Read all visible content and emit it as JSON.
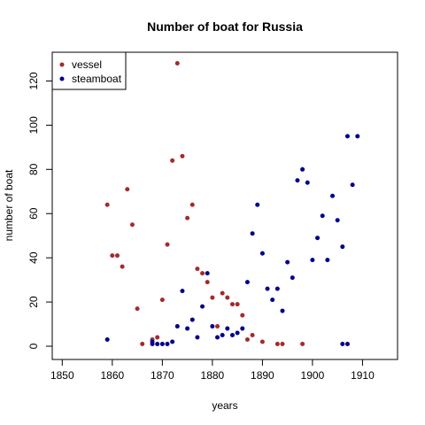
{
  "chart_data": {
    "type": "scatter",
    "title": "Number of boat for Russia",
    "xlabel": "years",
    "ylabel": "number of boat",
    "xlim": [
      1848,
      1917
    ],
    "ylim": [
      -6,
      133
    ],
    "xticks": [
      1850,
      1860,
      1870,
      1880,
      1890,
      1900,
      1910
    ],
    "yticks": [
      0,
      20,
      40,
      60,
      80,
      100,
      120
    ],
    "grid": false,
    "legend_position": "top-left",
    "series": [
      {
        "name": "vessel",
        "color": "#a52a2a",
        "points": [
          [
            1859,
            64
          ],
          [
            1860,
            41
          ],
          [
            1861,
            41
          ],
          [
            1862,
            36
          ],
          [
            1863,
            71
          ],
          [
            1864,
            55
          ],
          [
            1865,
            17
          ],
          [
            1866,
            1
          ],
          [
            1868,
            3
          ],
          [
            1869,
            4
          ],
          [
            1870,
            21
          ],
          [
            1871,
            46
          ],
          [
            1872,
            84
          ],
          [
            1873,
            128
          ],
          [
            1874,
            86
          ],
          [
            1875,
            58
          ],
          [
            1876,
            64
          ],
          [
            1877,
            35
          ],
          [
            1878,
            33
          ],
          [
            1879,
            29
          ],
          [
            1880,
            22
          ],
          [
            1881,
            9
          ],
          [
            1882,
            24
          ],
          [
            1883,
            22
          ],
          [
            1884,
            19
          ],
          [
            1885,
            19
          ],
          [
            1886,
            14
          ],
          [
            1887,
            3
          ],
          [
            1888,
            5
          ],
          [
            1890,
            2
          ],
          [
            1893,
            1
          ],
          [
            1894,
            1
          ],
          [
            1898,
            1
          ]
        ]
      },
      {
        "name": "steamboat",
        "color": "#00008b",
        "points": [
          [
            1859,
            3
          ],
          [
            1868,
            1
          ],
          [
            1868,
            2
          ],
          [
            1869,
            1
          ],
          [
            1870,
            1
          ],
          [
            1871,
            1
          ],
          [
            1872,
            2
          ],
          [
            1873,
            9
          ],
          [
            1874,
            25
          ],
          [
            1875,
            8
          ],
          [
            1876,
            12
          ],
          [
            1877,
            4
          ],
          [
            1878,
            18
          ],
          [
            1879,
            33
          ],
          [
            1880,
            9
          ],
          [
            1881,
            4
          ],
          [
            1882,
            5
          ],
          [
            1883,
            8
          ],
          [
            1884,
            5
          ],
          [
            1885,
            6
          ],
          [
            1886,
            8
          ],
          [
            1887,
            29
          ],
          [
            1888,
            51
          ],
          [
            1889,
            64
          ],
          [
            1890,
            42
          ],
          [
            1891,
            26
          ],
          [
            1892,
            21
          ],
          [
            1893,
            26
          ],
          [
            1894,
            16
          ],
          [
            1895,
            38
          ],
          [
            1896,
            31
          ],
          [
            1897,
            75
          ],
          [
            1898,
            80
          ],
          [
            1899,
            74
          ],
          [
            1900,
            39
          ],
          [
            1901,
            49
          ],
          [
            1902,
            59
          ],
          [
            1903,
            39
          ],
          [
            1904,
            68
          ],
          [
            1905,
            57
          ],
          [
            1906,
            45
          ],
          [
            1906,
            1
          ],
          [
            1907,
            1
          ],
          [
            1907,
            95
          ],
          [
            1908,
            73
          ],
          [
            1909,
            95
          ]
        ]
      }
    ]
  }
}
